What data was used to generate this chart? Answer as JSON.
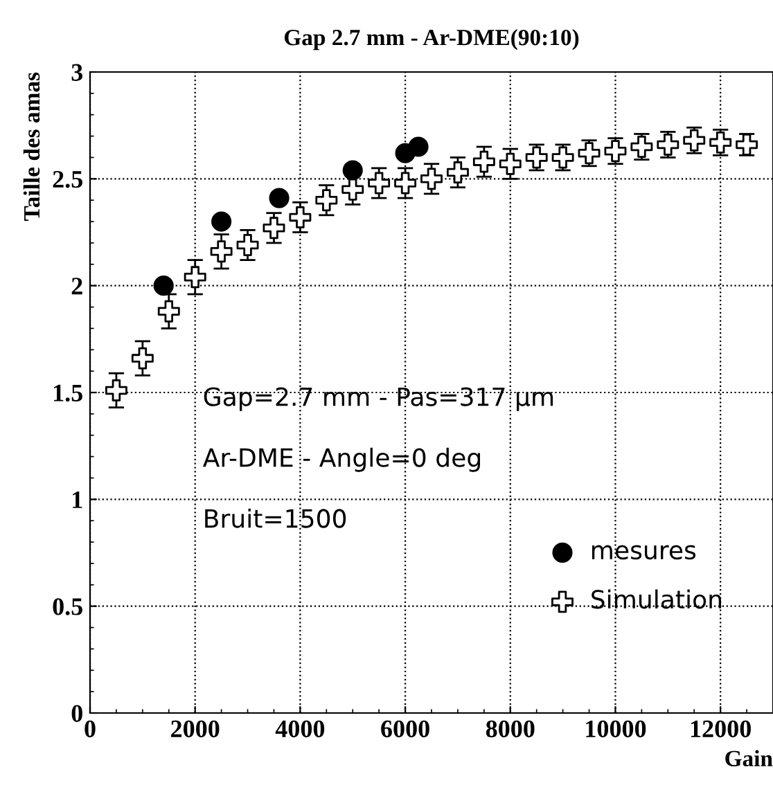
{
  "chart_data": {
    "type": "scatter",
    "title": "Gap 2.7 mm - Ar-DME(90:10)",
    "xlabel": "Gain",
    "ylabel": "Taille des amas",
    "xlim": [
      0,
      13000
    ],
    "xticks": [
      0,
      2000,
      4000,
      6000,
      8000,
      10000,
      12000
    ],
    "ylim": [
      0,
      3
    ],
    "yticks": [
      0,
      0.5,
      1,
      1.5,
      2,
      2.5,
      3
    ],
    "grid": true,
    "legend": "bottom right",
    "annotations": [
      "Gap=2.7 mm - Pas=317 μm",
      "Ar-DME - Angle=0 deg",
      "Bruit=1500"
    ],
    "series": [
      {
        "name": "mesures",
        "color": "#000000",
        "marker": "circle",
        "x": [
          1400,
          2500,
          3600,
          5000,
          6000,
          6250
        ],
        "values": [
          2.0,
          2.3,
          2.41,
          2.54,
          2.62,
          2.65
        ]
      },
      {
        "name": "Simulation",
        "color": "#000000",
        "marker": "cross",
        "x": [
          500,
          1000,
          1500,
          2000,
          2500,
          3000,
          3500,
          4000,
          4500,
          5000,
          5500,
          6000,
          6500,
          7000,
          7500,
          8000,
          8500,
          9000,
          9500,
          10000,
          10500,
          11000,
          11500,
          12000,
          12500
        ],
        "values": [
          1.51,
          1.66,
          1.88,
          2.04,
          2.16,
          2.19,
          2.27,
          2.32,
          2.4,
          2.45,
          2.48,
          2.48,
          2.5,
          2.53,
          2.58,
          2.57,
          2.6,
          2.6,
          2.62,
          2.63,
          2.65,
          2.66,
          2.68,
          2.67,
          2.66
        ],
        "errors": [
          0.08,
          0.08,
          0.08,
          0.08,
          0.08,
          0.07,
          0.07,
          0.07,
          0.07,
          0.07,
          0.07,
          0.07,
          0.07,
          0.07,
          0.07,
          0.07,
          0.06,
          0.06,
          0.06,
          0.06,
          0.06,
          0.06,
          0.06,
          0.06,
          0.05
        ]
      }
    ]
  }
}
